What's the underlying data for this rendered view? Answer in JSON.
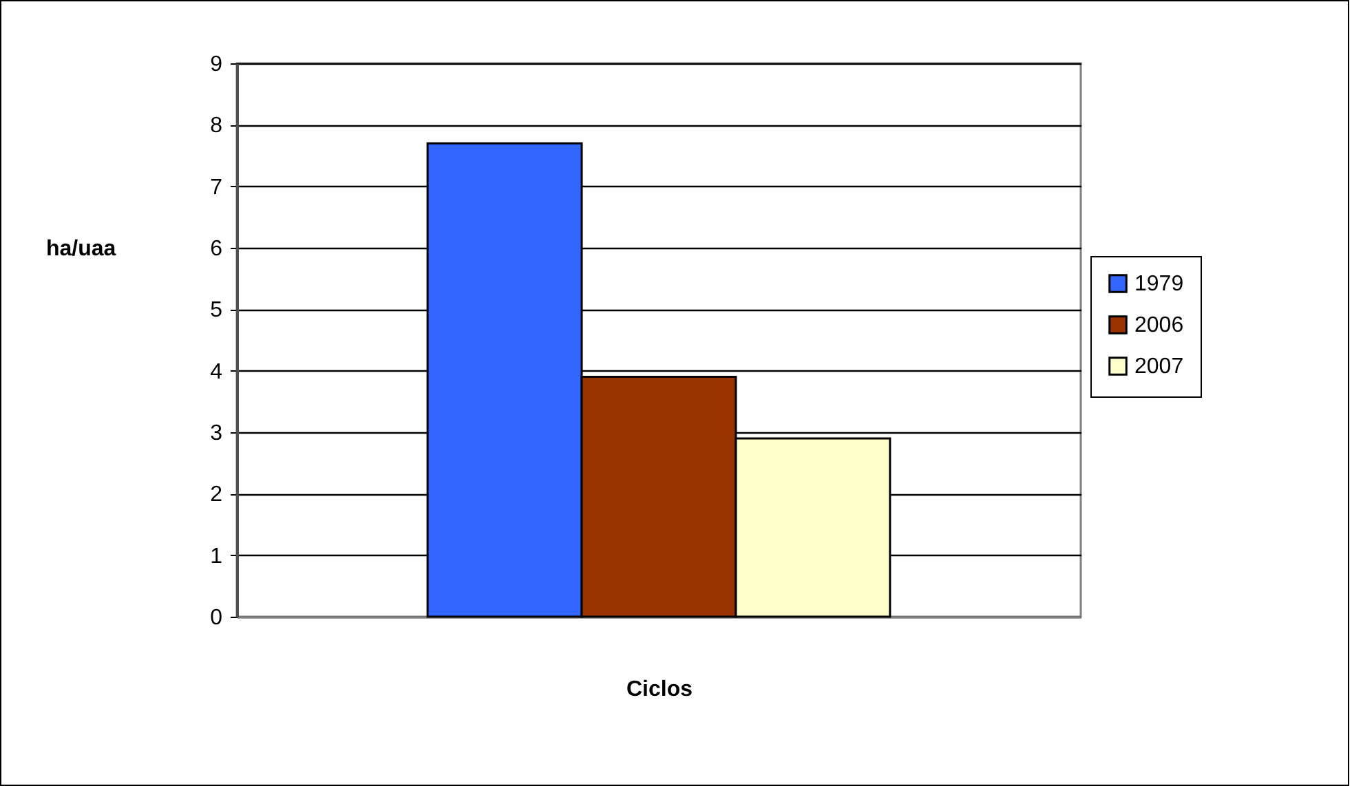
{
  "chart_data": {
    "type": "bar",
    "xlabel": "Ciclos",
    "ylabel": "ha/uaa",
    "categories": [
      null
    ],
    "series": [
      {
        "name": "1979",
        "color": "#3366ff",
        "values": [
          7.7
        ]
      },
      {
        "name": "2006",
        "color": "#993300",
        "values": [
          3.9
        ]
      },
      {
        "name": "2007",
        "color": "#ffffcc",
        "values": [
          2.9
        ]
      }
    ],
    "ylim": [
      0,
      9
    ],
    "yticks": [
      0,
      1,
      2,
      3,
      4,
      5,
      6,
      7,
      8,
      9
    ],
    "grid": "y",
    "legend": "right"
  }
}
